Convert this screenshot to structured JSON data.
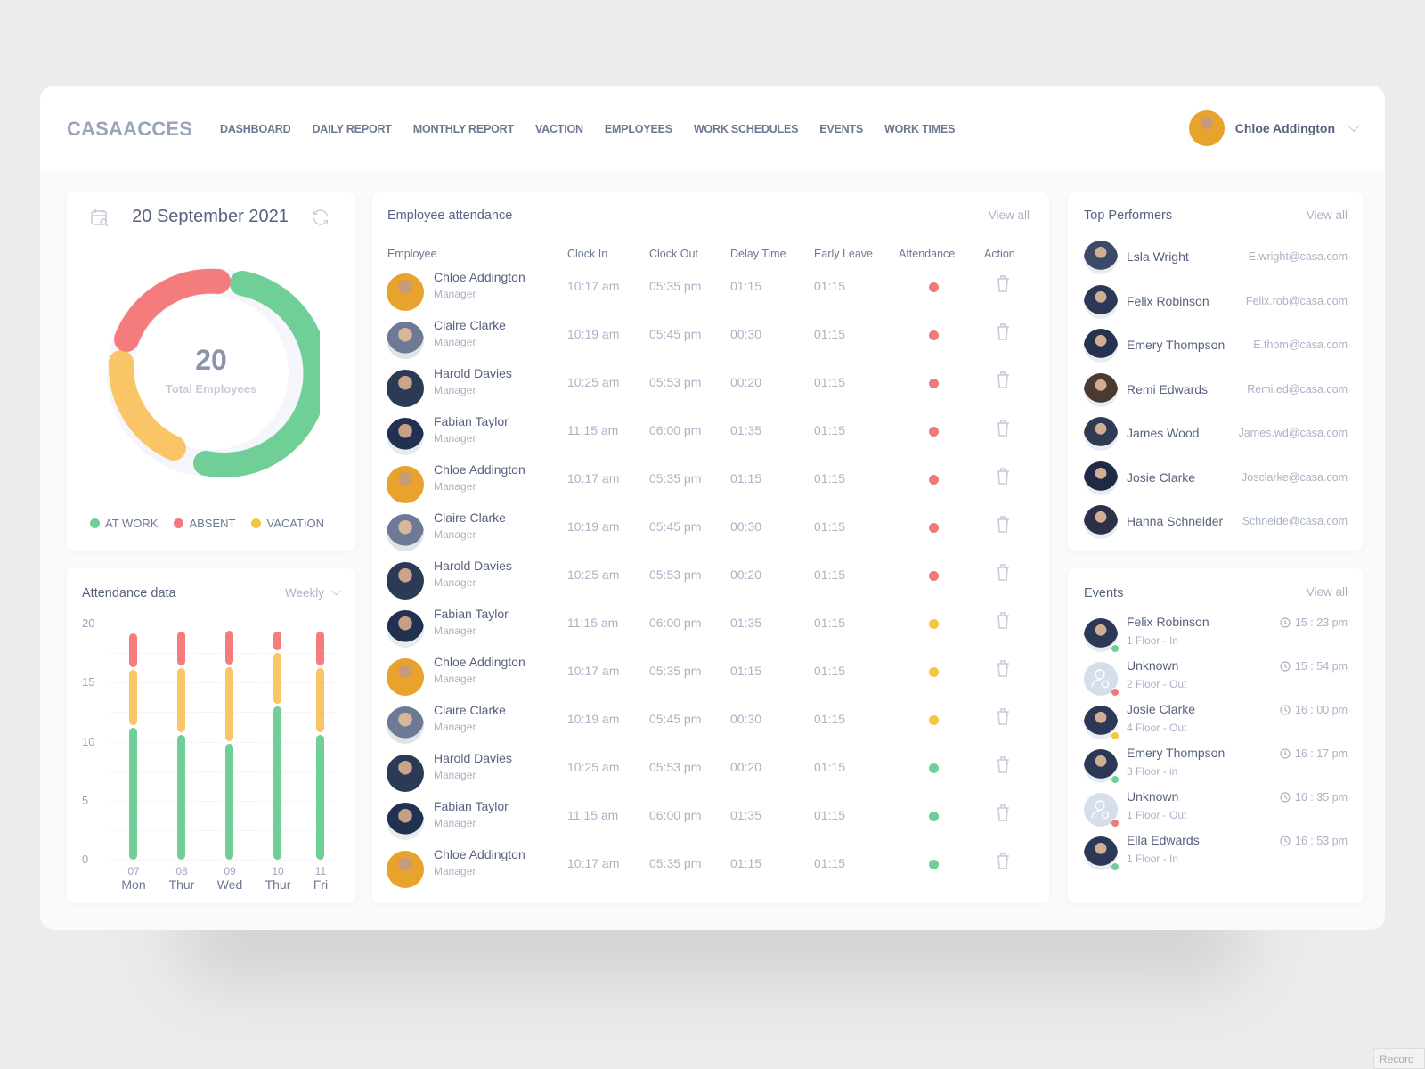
{
  "app": {
    "logo": "CASAACCES"
  },
  "nav": {
    "items": [
      "DASHBOARD",
      "DAILY REPORT",
      "MONTHLY REPORT",
      "VACTION",
      "EMPLOYEES",
      "WORK SCHEDULES",
      "EVENTS",
      "WORK TIMES"
    ]
  },
  "user": {
    "name": "Chloe Addington"
  },
  "date_card": {
    "date": "20 September 2021",
    "total": "20",
    "total_label": "Total Employees",
    "legend": [
      {
        "label": "AT WORK",
        "color": "#6fcf97"
      },
      {
        "label": "ABSENT",
        "color": "#f07a7a"
      },
      {
        "label": "VACATION",
        "color": "#f6c343"
      }
    ]
  },
  "attendance_data": {
    "title": "Attendance data",
    "period": "Weekly",
    "y_ticks": [
      "20",
      "15",
      "10",
      "5",
      "0"
    ]
  },
  "chart_data": [
    {
      "type": "pie",
      "title": "Total Employees",
      "center_value": 20,
      "categories": [
        "AT WORK",
        "ABSENT",
        "VACATION"
      ],
      "values": [
        10,
        5,
        5
      ],
      "colors": [
        "#6fcf97",
        "#f07a7a",
        "#f9c566"
      ]
    },
    {
      "type": "bar",
      "title": "Attendance data",
      "stacked": true,
      "categories": [
        "07 Mon",
        "08 Thur",
        "09 Wed",
        "10 Thur",
        "11 Fri"
      ],
      "x_days": [
        "07",
        "08",
        "09",
        "10",
        "11"
      ],
      "x_weekdays": [
        "Mon",
        "Thur",
        "Wed",
        "Thur",
        "Fri"
      ],
      "series": [
        {
          "name": "AT WORK",
          "values": [
            11.2,
            10.6,
            9.8,
            13.0,
            10.6
          ],
          "color": "#6fcf97"
        },
        {
          "name": "VACATION",
          "values": [
            4.9,
            5.6,
            6.5,
            4.5,
            5.6
          ],
          "color": "#f9c566"
        },
        {
          "name": "ABSENT",
          "values": [
            3.1,
            3.1,
            3.1,
            1.8,
            3.1
          ],
          "color": "#f47c7c"
        }
      ],
      "ylim": [
        0,
        20
      ],
      "yticks": [
        0,
        5,
        10,
        15,
        20
      ],
      "grid": true,
      "legend": "none"
    }
  ],
  "employee_attendance": {
    "title": "Employee attendance",
    "view_all": "View all",
    "columns": [
      "Employee",
      "Clock In",
      "Clock Out",
      "Delay Time",
      "Early Leave",
      "Attendance",
      "Action"
    ],
    "rows": [
      {
        "name": "Chloe Addington",
        "role": "Manager",
        "in": "10:17 am",
        "out": "05:35 pm",
        "delay": "01:15",
        "early": "01:15",
        "status": "absent"
      },
      {
        "name": "Claire Clarke",
        "role": "Manager",
        "in": "10:19 am",
        "out": "05:45 pm",
        "delay": "00:30",
        "early": "01:15",
        "status": "absent"
      },
      {
        "name": "Harold Davies",
        "role": "Manager",
        "in": "10:25 am",
        "out": "05:53 pm",
        "delay": "00:20",
        "early": "01:15",
        "status": "absent"
      },
      {
        "name": "Fabian Taylor",
        "role": "Manager",
        "in": "11:15 am",
        "out": "06:00 pm",
        "delay": "01:35",
        "early": "01:15",
        "status": "absent"
      },
      {
        "name": "Chloe Addington",
        "role": "Manager",
        "in": "10:17 am",
        "out": "05:35 pm",
        "delay": "01:15",
        "early": "01:15",
        "status": "absent"
      },
      {
        "name": "Claire Clarke",
        "role": "Manager",
        "in": "10:19 am",
        "out": "05:45 pm",
        "delay": "00:30",
        "early": "01:15",
        "status": "absent"
      },
      {
        "name": "Harold Davies",
        "role": "Manager",
        "in": "10:25 am",
        "out": "05:53 pm",
        "delay": "00:20",
        "early": "01:15",
        "status": "absent"
      },
      {
        "name": "Fabian Taylor",
        "role": "Manager",
        "in": "11:15 am",
        "out": "06:00 pm",
        "delay": "01:35",
        "early": "01:15",
        "status": "vacation"
      },
      {
        "name": "Chloe Addington",
        "role": "Manager",
        "in": "10:17 am",
        "out": "05:35 pm",
        "delay": "01:15",
        "early": "01:15",
        "status": "vacation"
      },
      {
        "name": "Claire Clarke",
        "role": "Manager",
        "in": "10:19 am",
        "out": "05:45 pm",
        "delay": "00:30",
        "early": "01:15",
        "status": "vacation"
      },
      {
        "name": "Harold Davies",
        "role": "Manager",
        "in": "10:25 am",
        "out": "05:53 pm",
        "delay": "00:20",
        "early": "01:15",
        "status": "at-work"
      },
      {
        "name": "Fabian Taylor",
        "role": "Manager",
        "in": "11:15 am",
        "out": "06:00 pm",
        "delay": "01:35",
        "early": "01:15",
        "status": "at-work"
      },
      {
        "name": "Chloe Addington",
        "role": "Manager",
        "in": "10:17 am",
        "out": "05:35 pm",
        "delay": "01:15",
        "early": "01:15",
        "status": "at-work"
      }
    ]
  },
  "top_performers": {
    "title": "Top Performers",
    "view_all": "View all",
    "items": [
      {
        "name": "Lsla Wright",
        "email": "E.wright@casa.com"
      },
      {
        "name": "Felix Robinson",
        "email": "Felix.rob@casa.com"
      },
      {
        "name": "Emery Thompson",
        "email": "E.thom@casa.com"
      },
      {
        "name": "Remi Edwards",
        "email": "Remi.ed@casa.com"
      },
      {
        "name": "James Wood",
        "email": "James.wd@casa.com"
      },
      {
        "name": "Josie Clarke",
        "email": "Josclarke@casa.com"
      },
      {
        "name": "Hanna Schneider",
        "email": "Schneide@casa.com"
      }
    ]
  },
  "events": {
    "title": "Events",
    "view_all": "View all",
    "items": [
      {
        "name": "Felix Robinson",
        "floor": "1 Floor - In",
        "time": "15 : 23 pm",
        "status": "in",
        "unknown": false
      },
      {
        "name": "Unknown",
        "floor": "2 Floor - Out",
        "time": "15 : 54 pm",
        "status": "out",
        "unknown": true
      },
      {
        "name": "Josie Clarke",
        "floor": "4 Floor - Out",
        "time": "16 : 00 pm",
        "status": "pending",
        "unknown": false
      },
      {
        "name": "Emery Thompson",
        "floor": "3 Floor - in",
        "time": "16 : 17 pm",
        "status": "in",
        "unknown": false
      },
      {
        "name": "Unknown",
        "floor": "1 Floor - Out",
        "time": "16 : 35 pm",
        "status": "out",
        "unknown": true
      },
      {
        "name": "Ella Edwards",
        "floor": "1 Floor - In",
        "time": "16 : 53 pm",
        "status": "in",
        "unknown": false
      }
    ]
  },
  "colors": {
    "at_work": "#6fcf97",
    "absent": "#f07a7a",
    "vacation": "#f6c343",
    "accent_text": "#56627f",
    "muted": "#aab2c5"
  },
  "footer": {
    "record": "Record"
  }
}
